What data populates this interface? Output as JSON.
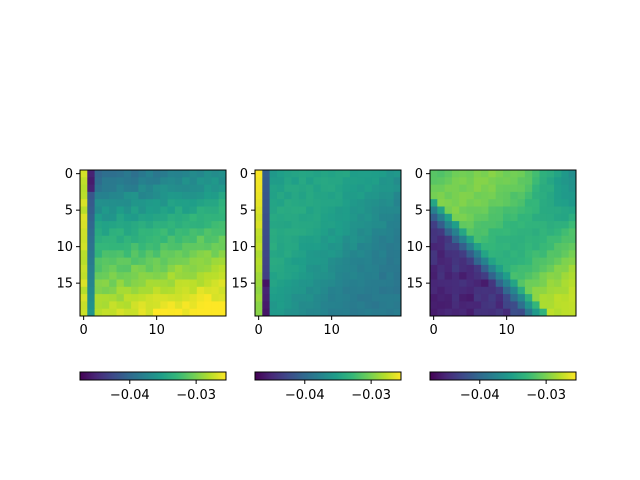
{
  "chart_data": {
    "type": "heatmap",
    "layout": "three heatmap panels side by side, each with a horizontal colorbar below",
    "colormap": "viridis",
    "colormap_stops": [
      "#440154",
      "#482878",
      "#3e4989",
      "#31688e",
      "#26828e",
      "#1f9e89",
      "#35b779",
      "#6ece58",
      "#b5de2b",
      "#fde725"
    ],
    "value_range": [
      -0.0475,
      -0.0255
    ],
    "grid": false,
    "panels": [
      {
        "shape": [
          20,
          20
        ],
        "x_ticks": [
          0,
          10
        ],
        "y_ticks": [
          0,
          5,
          10,
          15
        ],
        "colorbar_ticks": [
          -0.04,
          -0.03
        ],
        "colorbar_tick_labels": [
          "−0.04",
          "−0.03"
        ],
        "pattern": "bright column at x=0, dark column at x=1 near top; values rise toward bottom-right"
      },
      {
        "shape": [
          20,
          20
        ],
        "x_ticks": [
          0,
          10
        ],
        "y_ticks": [
          0,
          5,
          10,
          15
        ],
        "colorbar_ticks": [
          -0.04,
          -0.03
        ],
        "colorbar_tick_labels": [
          "−0.04",
          "−0.03"
        ],
        "pattern": "bright column at x=0, dark column at x=1 near bottom; mostly uniform teal-green"
      },
      {
        "shape": [
          20,
          20
        ],
        "x_ticks": [
          0,
          10
        ],
        "y_ticks": [
          0,
          5,
          10,
          15
        ],
        "colorbar_ticks": [
          -0.04,
          -0.03
        ],
        "colorbar_tick_labels": [
          "−0.04",
          "−0.03"
        ],
        "pattern": "dark bottom-left triangle, bright diagonal band, yellow bottom-right"
      }
    ]
  }
}
